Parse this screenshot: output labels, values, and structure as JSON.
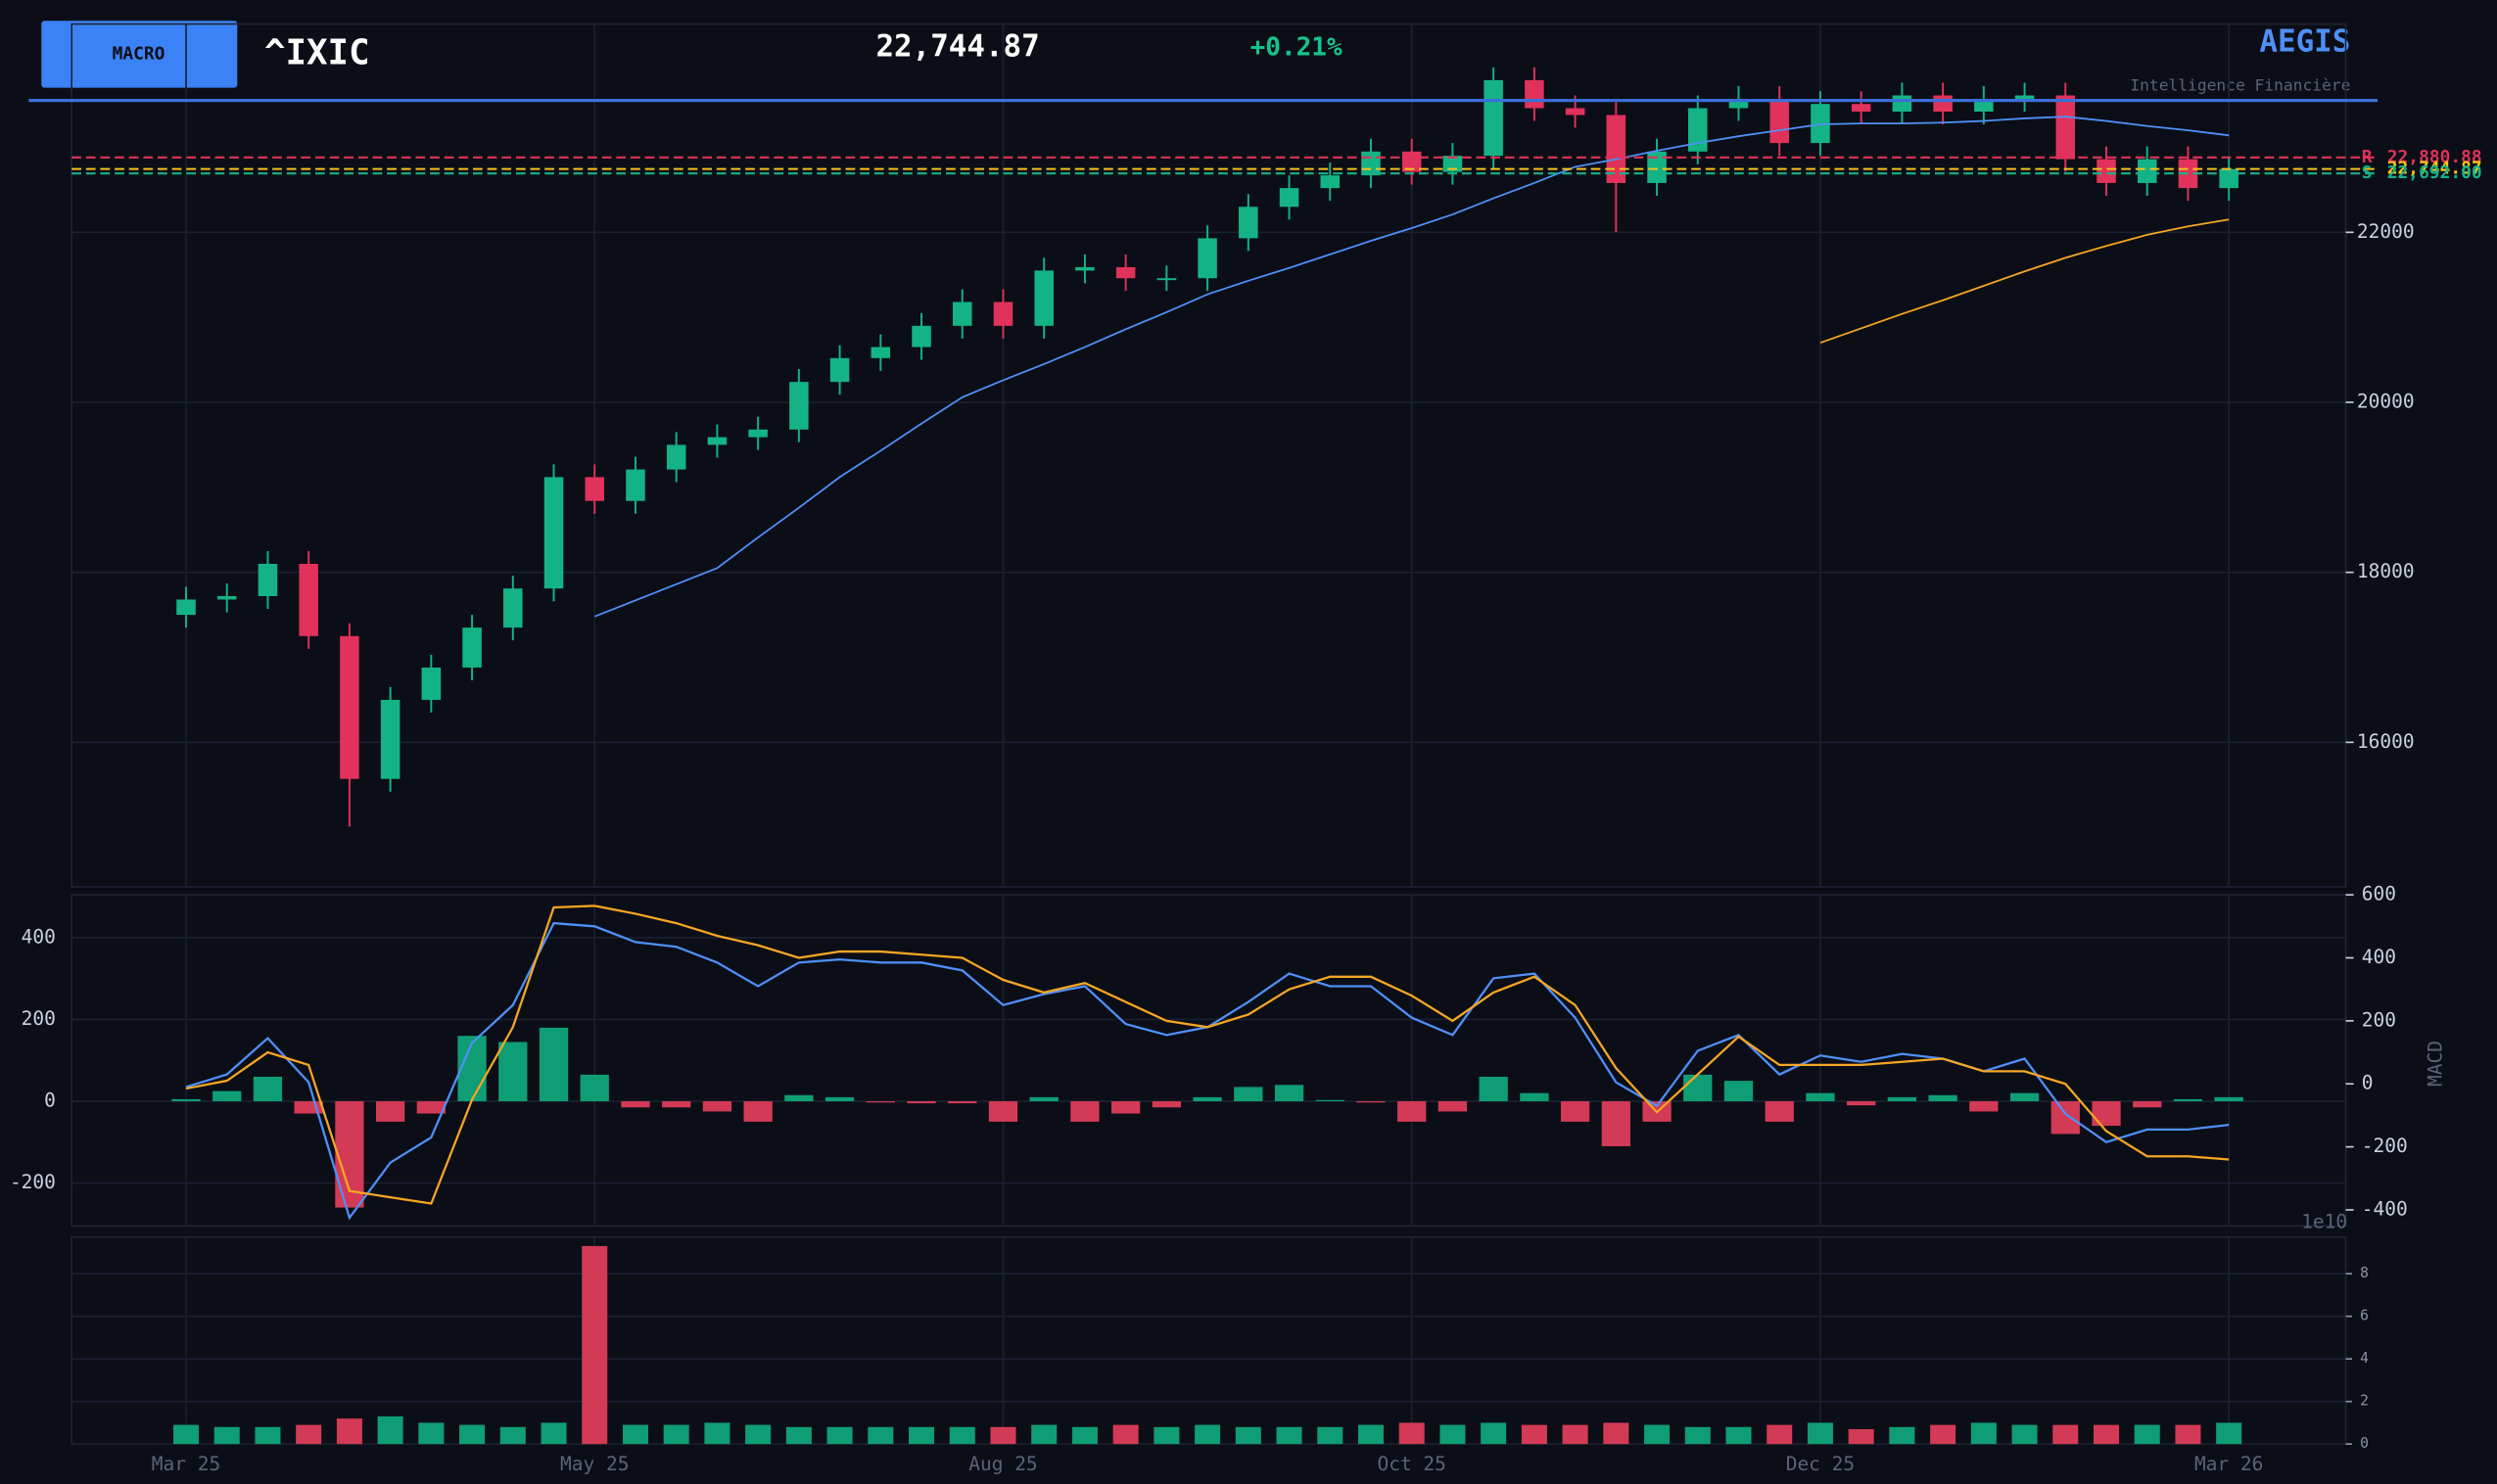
{
  "header": {
    "badge": "MACRO",
    "symbol": "^IXIC",
    "price": "22,744.87",
    "change": "+0.21%",
    "brand": "AEGIS",
    "tagline": "Intelligence Financière"
  },
  "chart_data": [
    {
      "type": "candlestick",
      "x": [
        0,
        5,
        10,
        15,
        20,
        25,
        30,
        35,
        40,
        45,
        50,
        55,
        60,
        65,
        70,
        75,
        80,
        85,
        90,
        95,
        100,
        105,
        110,
        115,
        120,
        125,
        130,
        135,
        140,
        145,
        150,
        155,
        160,
        165,
        170,
        175,
        180,
        185,
        190,
        195,
        200,
        205,
        210,
        215,
        220,
        225,
        230,
        235,
        240,
        245,
        250
      ],
      "open": [
        17500,
        17680,
        17720,
        18100,
        17250,
        15570,
        16500,
        16880,
        17350,
        17810,
        19120,
        18840,
        19210,
        19500,
        19590,
        19680,
        20240,
        20520,
        20650,
        20900,
        21180,
        20900,
        21550,
        21590,
        21460,
        21460,
        21930,
        22300,
        22520,
        22670,
        22950,
        22710,
        22900,
        23790,
        23460,
        23380,
        22580,
        22950,
        23460,
        23570,
        23050,
        23510,
        23420,
        23610,
        23420,
        23570,
        23610,
        22860,
        22580,
        22860,
        22520
      ],
      "high": [
        17830,
        17870,
        18250,
        18250,
        17400,
        16650,
        17030,
        17500,
        17960,
        19270,
        19270,
        19360,
        19650,
        19740,
        19830,
        20390,
        20670,
        20800,
        21050,
        21330,
        21330,
        21700,
        21740,
        21740,
        21610,
        22080,
        22450,
        22670,
        22820,
        23100,
        23100,
        23050,
        23940,
        23940,
        23610,
        23530,
        23100,
        23610,
        23720,
        23720,
        23660,
        23660,
        23760,
        23760,
        23720,
        23760,
        23760,
        23010,
        23010,
        23010,
        22895
      ],
      "low": [
        17350,
        17530,
        17570,
        17100,
        15010,
        15420,
        16350,
        16730,
        17200,
        17660,
        18690,
        18690,
        19060,
        19350,
        19440,
        19530,
        20090,
        20370,
        20500,
        20750,
        20750,
        20750,
        21400,
        21310,
        21310,
        21310,
        21780,
        22150,
        22370,
        22520,
        22560,
        22560,
        22750,
        23310,
        23230,
        22000,
        22430,
        22800,
        23310,
        22900,
        22900,
        23270,
        23270,
        23270,
        23270,
        23420,
        22710,
        22430,
        22430,
        22370,
        22370
      ],
      "close": [
        17680,
        17720,
        18100,
        17250,
        15570,
        16500,
        16880,
        17350,
        17810,
        19120,
        18840,
        19210,
        19500,
        19590,
        19680,
        20240,
        20520,
        20650,
        20900,
        21180,
        20900,
        21550,
        21590,
        21460,
        21460,
        21930,
        22300,
        22520,
        22670,
        22950,
        22710,
        22900,
        23790,
        23460,
        23380,
        22580,
        22950,
        23460,
        23570,
        23050,
        23510,
        23420,
        23610,
        23420,
        23570,
        23610,
        22860,
        22580,
        22860,
        22520,
        22745
      ],
      "up_color": "#14b386",
      "down_color": "#e0325a",
      "overlays": [
        {
          "color": "#4f8ff7",
          "values": [
            null,
            null,
            null,
            null,
            null,
            null,
            null,
            null,
            null,
            null,
            17480,
            17670,
            17860,
            18050,
            18410,
            18760,
            19120,
            19430,
            19750,
            20060,
            20260,
            20450,
            20650,
            20860,
            21060,
            21270,
            21430,
            21580,
            21740,
            21900,
            22050,
            22210,
            22400,
            22580,
            22770,
            22860,
            22960,
            23050,
            23130,
            23200,
            23270,
            23280,
            23280,
            23290,
            23310,
            23340,
            23360,
            23310,
            23250,
            23200,
            23140
          ]
        },
        {
          "color": "#f5a623",
          "values": [
            null,
            null,
            null,
            null,
            null,
            null,
            null,
            null,
            null,
            null,
            null,
            null,
            null,
            null,
            null,
            null,
            null,
            null,
            null,
            null,
            null,
            null,
            null,
            null,
            null,
            null,
            null,
            null,
            null,
            null,
            null,
            null,
            null,
            null,
            null,
            null,
            null,
            null,
            null,
            null,
            20700,
            20870,
            21040,
            21200,
            21370,
            21540,
            21700,
            21840,
            21970,
            22070,
            22150
          ]
        }
      ],
      "levels": [
        {
          "name": "R",
          "value": 22880.88,
          "label": "22,880.88",
          "color": "#e0325a"
        },
        {
          "value": 22744.87,
          "label": "22,744.87",
          "color": "#f5c518"
        },
        {
          "name": "S",
          "value": 22692.0,
          "label": "22,692.00",
          "color": "#14b386"
        }
      ],
      "xlim": [
        -14,
        264.3
      ],
      "xticks": [
        {
          "value": 0,
          "label": "Mar 25"
        },
        {
          "value": 50,
          "label": "May 25"
        },
        {
          "value": 100,
          "label": "Aug 25"
        },
        {
          "value": 150,
          "label": "Oct 25"
        },
        {
          "value": 200,
          "label": "Dec 25"
        },
        {
          "value": 250,
          "label": "Mar 26"
        }
      ],
      "ylim": [
        14300,
        24450
      ],
      "yticks": [
        16000,
        18000,
        20000,
        22000
      ],
      "grid": true
    },
    {
      "type": "macd",
      "y2label": "MACD",
      "ylim": [
        -305,
        505
      ],
      "yticks": [
        -200,
        0,
        200,
        400
      ],
      "y2lim": [
        -451,
        600
      ],
      "y2ticks": [
        -400,
        -200,
        0,
        200,
        400,
        600
      ],
      "grid": true,
      "series": [
        {
          "type": "bar",
          "color": "#0f9d74",
          "negative_color": "#d33a55",
          "values": [
            5,
            25,
            60,
            -30,
            -260,
            -50,
            -30,
            160,
            145,
            180,
            65,
            -15,
            -15,
            -25,
            -50,
            15,
            10,
            -3,
            -5,
            -5,
            -50,
            10,
            -50,
            -30,
            -15,
            10,
            35,
            40,
            3,
            -3,
            -50,
            -25,
            60,
            20,
            -50,
            -110,
            -50,
            65,
            50,
            -50,
            20,
            -10,
            10,
            15,
            -25,
            20,
            -80,
            -60,
            -15,
            5,
            10
          ]
        },
        {
          "type": "line",
          "axis": "y2",
          "color": "#4f8ff7",
          "values": [
            -10,
            30,
            145,
            5,
            -425,
            -250,
            -170,
            130,
            250,
            510,
            500,
            450,
            435,
            385,
            310,
            385,
            395,
            385,
            385,
            360,
            250,
            285,
            310,
            190,
            155,
            180,
            260,
            350,
            310,
            310,
            210,
            155,
            335,
            350,
            210,
            5,
            -70,
            105,
            155,
            30,
            90,
            70,
            95,
            80,
            40,
            80,
            -95,
            -185,
            -145,
            -145,
            -130
          ]
        },
        {
          "type": "line",
          "axis": "y2",
          "color": "#f5a623",
          "values": [
            -15,
            10,
            100,
            60,
            -340,
            -360,
            -380,
            -50,
            180,
            560,
            565,
            540,
            510,
            470,
            440,
            400,
            420,
            420,
            410,
            400,
            330,
            290,
            320,
            260,
            200,
            180,
            220,
            300,
            340,
            340,
            280,
            200,
            290,
            340,
            250,
            50,
            -90,
            30,
            150,
            60,
            60,
            60,
            70,
            80,
            40,
            40,
            0,
            -150,
            -230,
            -230,
            -240
          ]
        }
      ]
    },
    {
      "type": "bar",
      "yunit": "1e10",
      "ylim": [
        0,
        9.72
      ],
      "yticks": [
        0,
        2,
        4,
        6,
        8
      ],
      "grid": true,
      "up_color": "#0f9d74",
      "down_color": "#d33a55",
      "values": [
        0.9,
        0.8,
        0.8,
        0.9,
        1.2,
        1.3,
        1.0,
        0.9,
        0.8,
        1.0,
        9.3,
        0.9,
        0.9,
        1.0,
        0.9,
        0.8,
        0.8,
        0.8,
        0.8,
        0.8,
        0.8,
        0.9,
        0.8,
        0.9,
        0.8,
        0.9,
        0.8,
        0.8,
        0.8,
        0.9,
        1.0,
        0.9,
        1.0,
        0.9,
        0.9,
        1.0,
        0.9,
        0.8,
        0.8,
        0.9,
        1.0,
        0.7,
        0.8,
        0.9,
        1.0,
        0.9,
        0.9,
        0.9,
        0.9,
        0.9,
        1.0
      ]
    }
  ]
}
